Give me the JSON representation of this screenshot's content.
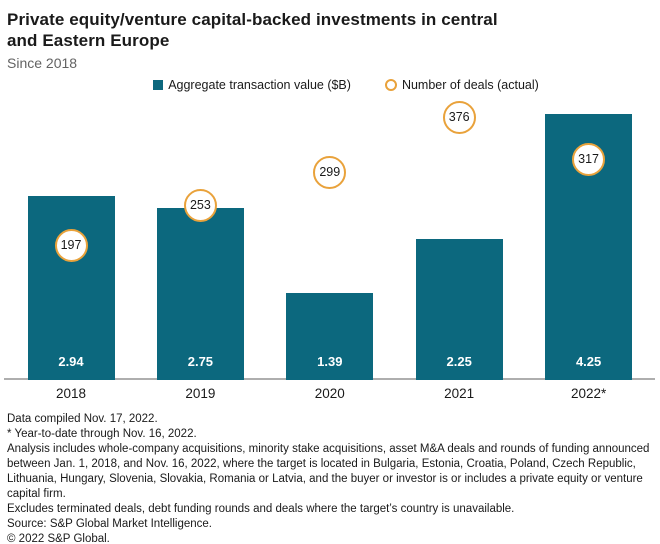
{
  "header": {
    "title_line1": "Private equity/venture capital-backed investments in central",
    "title_line2": "and Eastern Europe",
    "subtitle": "Since 2018"
  },
  "legend": {
    "bar_label": "Aggregate transaction value ($B)",
    "deals_label": "Number of deals (actual)"
  },
  "chart_data": {
    "type": "bar",
    "title": "Private equity/venture capital-backed investments in central and Eastern Europe",
    "subtitle": "Since 2018",
    "categories": [
      "2018",
      "2019",
      "2020",
      "2021",
      "2022*"
    ],
    "series": [
      {
        "name": "Aggregate transaction value ($B)",
        "type": "bar",
        "values": [
          2.94,
          2.75,
          1.39,
          2.25,
          4.25
        ],
        "color": "#0c687e",
        "value_labels": [
          "2.94",
          "2.75",
          "1.39",
          "2.25",
          "4.25"
        ]
      },
      {
        "name": "Number of deals (actual)",
        "type": "point",
        "values": [
          197,
          253,
          299,
          376,
          317
        ],
        "marker": "open-circle",
        "color": "#e9a23b"
      }
    ],
    "xlabel": "",
    "ylabel": "",
    "grid": false,
    "legend_position": "top",
    "value_labels_position": "inside-bottom"
  },
  "footnotes": [
    "Data compiled Nov. 17, 2022.",
    "* Year-to-date through Nov. 16, 2022.",
    "Analysis includes whole-company acquisitions, minority stake acquisitions, asset M&A deals and rounds of funding announced between Jan. 1, 2018, and Nov. 16, 2022, where the target is located in Bulgaria, Estonia, Croatia, Poland, Czech Republic, Lithuania, Hungary, Slovenia, Slovakia, Romania or Latvia, and the buyer or investor is or includes a private equity or venture capital firm.",
    "Excludes terminated deals, debt funding rounds and deals where the target’s country is unavailable.",
    "Source: S&P Global Market Intelligence.",
    "© 2022 S&P Global."
  ],
  "colors": {
    "bar": "#0c687e",
    "marker_ring": "#e9a23b",
    "axis_line": "#aeaeae",
    "title_text": "#1a1a1a",
    "subtitle_text": "#636363",
    "bar_value_text": "#ffffff"
  }
}
